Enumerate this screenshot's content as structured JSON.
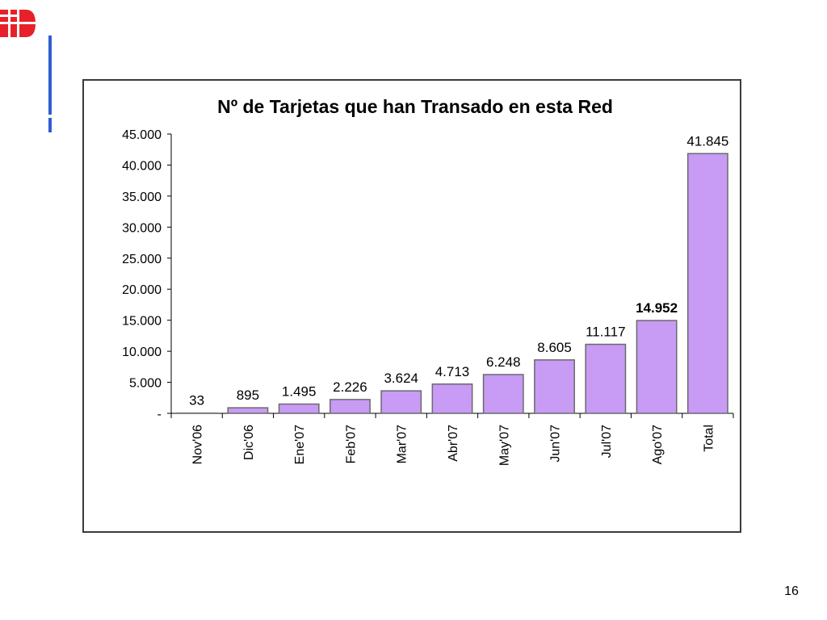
{
  "page": {
    "number": "16"
  },
  "logo": {
    "icon": "ib-logo-icon",
    "color": "#e8202a"
  },
  "accent_color": "#2f5fd0",
  "chart_data": {
    "type": "bar",
    "title": "Nº de Tarjetas que han Transado en esta Red",
    "xlabel": "",
    "ylabel": "",
    "categories": [
      "Nov'06",
      "Dic'06",
      "Ene'07",
      "Feb'07",
      "Mar'07",
      "Abr'07",
      "May'07",
      "Jun'07",
      "Jul'07",
      "Ago'07",
      "Total"
    ],
    "values": [
      33,
      895,
      1495,
      2226,
      3624,
      4713,
      6248,
      8605,
      11117,
      14952,
      41845
    ],
    "value_labels": [
      "33",
      "895",
      "1.495",
      "2.226",
      "3.624",
      "4.713",
      "6.248",
      "8.605",
      "11.117",
      "14.952",
      "41.845"
    ],
    "bold_label_index": 9,
    "ylim": [
      0,
      45000
    ],
    "yticks": [
      0,
      5000,
      10000,
      15000,
      20000,
      25000,
      30000,
      35000,
      40000,
      45000
    ],
    "ytick_labels": [
      "-",
      "5.000",
      "10.000",
      "15.000",
      "20.000",
      "25.000",
      "30.000",
      "35.000",
      "40.000",
      "45.000"
    ],
    "grid": false,
    "legend": "none",
    "bar_color": "#c89bf5",
    "bar_edge_color": "#6a6a6a"
  }
}
